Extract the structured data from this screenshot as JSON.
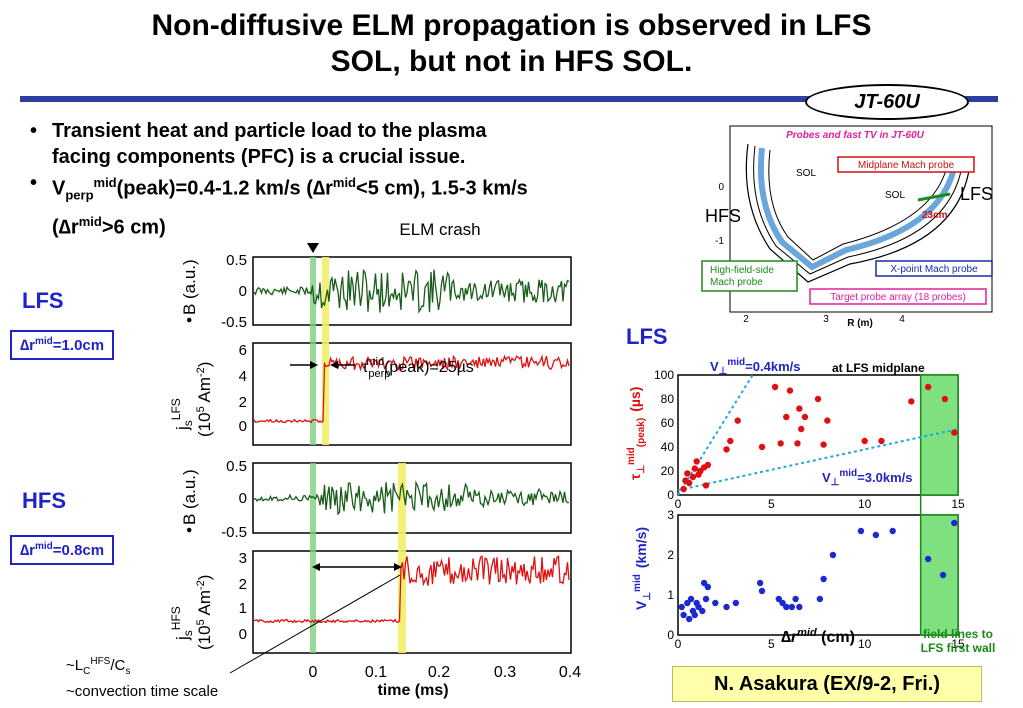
{
  "title_line1": "Non-diffusive ELM propagation is observed in LFS",
  "title_line2": "SOL, but not in HFS SOL.",
  "machine": "JT-60U",
  "bullets": {
    "b1_line1": "Transient heat and particle load to the plasma",
    "b1_line2": "facing components (PFC) is a crucial issue.",
    "b2_v": "V",
    "b2_sub": "perp",
    "b2_sup": "mid",
    "b2_text1": "(peak)=0.4-1.2 km/s (",
    "b2_dr": "∆r",
    "b2_text2": "<5 cm), 1.5-3 km/s",
    "b2_text3": ">6 cm)",
    "b2_paren": "("
  },
  "left_panels": {
    "elm_crash": "ELM crash",
    "lfs_label": "LFS",
    "hfs_label": "HFS",
    "lfs_box": "∆r",
    "lfs_box_val": "=1.0cm",
    "hfs_box": "∆r",
    "hfs_box_val": "=0.8cm",
    "box_sup": "mid",
    "bdot_label": "B (a.u.)",
    "js_lfs_label1": "j",
    "js_lfs_sub": "s",
    "js_lfs_sup": "LFS",
    "js_units": "(10",
    "js_units_exp": "5",
    "js_units_end": " Am",
    "js_units_exp2": "-2",
    "js_units_close": ")",
    "js_hfs_sup": "HFS",
    "tau_label": "τ",
    "tau_sub": "perp",
    "tau_sup": "mid",
    "tau_val": "(peak)=25µs",
    "xaxis": "time (ms)",
    "xticks": [
      "0",
      "0.1",
      "0.2",
      "0.3",
      "0.4"
    ],
    "p1_yticks": [
      "0.5",
      "0",
      "-0.5"
    ],
    "p2_yticks": [
      "6",
      "4",
      "2",
      "0"
    ],
    "p3_yticks": [
      "0.5",
      "0",
      "-0.5"
    ],
    "p4_yticks": [
      "3",
      "2",
      "1",
      "0"
    ],
    "lc_note1": "~L",
    "lc_sub": "C",
    "lc_sup": "HFS",
    "lc_note2": "/C",
    "lc_sub2": "s",
    "lc_note3": "~convection time scale"
  },
  "diagram": {
    "title": "Probes and fast TV in JT-60U",
    "sol1": "SOL",
    "sol2": "SOL",
    "lfs": "LFS",
    "hfs": "HFS",
    "cm23": "23cm",
    "midplane": "Midplane Mach probe",
    "hfs_mach1": "High-field-side",
    "hfs_mach2": "Mach probe",
    "xpoint": "X-point Mach probe",
    "target": "Target probe array (18 probes)",
    "yticks": [
      "0",
      "-1"
    ],
    "xticks": [
      "2",
      "3",
      "4"
    ],
    "xlabel": "R (m)"
  },
  "right_plot": {
    "lfs_label": "LFS",
    "at_lfs": "at LFS midplane",
    "v04": "=0.4km/s",
    "v30": "=3.0km/s",
    "v_sym": "V",
    "v_sub": "⊥",
    "v_sup": "mid",
    "top_ylabel": "(µs)",
    "top_ylabel_tau": "τ",
    "top_ylabel_sub": "⊥",
    "top_ylabel_sup": "mid",
    "top_ylabel_peak": "(peak)",
    "bottom_ylabel": "(km/s)",
    "top_yticks": [
      "100",
      "80",
      "60",
      "40",
      "20",
      "0"
    ],
    "bottom_yticks": [
      "3",
      "2",
      "1",
      "0"
    ],
    "top_xticks": [
      "0",
      "5",
      "10",
      "15"
    ],
    "bottom_xticks": [
      "0",
      "5",
      "10",
      "15"
    ],
    "xlabel_dr": "∆r",
    "xlabel_sup": "mid",
    "xlabel_unit": " (cm)",
    "green_note1": "field lines to",
    "green_note2": "LFS first wall"
  },
  "credit": "N. Asakura (EX/9-2, Fri.)",
  "chart_data": [
    {
      "type": "scatter",
      "title": "",
      "xlabel": "∆r mid (cm)",
      "ylabel": "τ⊥ mid (peak) (µs)",
      "xlim": [
        0,
        15
      ],
      "ylim": [
        0,
        100
      ],
      "series": [
        {
          "x": [
            0.3,
            0.4,
            0.5,
            0.6,
            0.8,
            0.9,
            1.0,
            1.1,
            1.2,
            1.4,
            1.5,
            1.6,
            2.6,
            2.8,
            3.2,
            4.5,
            5.2,
            5.5,
            5.8,
            6.0,
            6.4,
            6.5,
            6.6,
            6.8,
            7.5,
            7.8,
            8.0,
            10.0,
            10.9,
            12.5,
            13.4,
            14.3,
            14.8
          ],
          "y": [
            5,
            12,
            18,
            10,
            15,
            22,
            28,
            17,
            20,
            23,
            8,
            25,
            38,
            45,
            62,
            40,
            90,
            43,
            65,
            87,
            43,
            72,
            55,
            65,
            80,
            42,
            62,
            45,
            45,
            78,
            90,
            80,
            52
          ]
        }
      ],
      "lines": [
        {
          "label": "V⊥ mid =0.4km/s",
          "x": [
            0,
            4
          ],
          "y": [
            0,
            100
          ]
        },
        {
          "label": "V⊥ mid =3.0km/s",
          "x": [
            0,
            15
          ],
          "y": [
            4,
            55
          ]
        }
      ],
      "shaded_region_x": [
        13,
        15
      ]
    },
    {
      "type": "scatter",
      "title": "",
      "xlabel": "∆r mid (cm)",
      "ylabel": "V⊥ mid (km/s)",
      "xlim": [
        0,
        15
      ],
      "ylim": [
        0,
        3
      ],
      "series": [
        {
          "x": [
            0.2,
            0.3,
            0.5,
            0.6,
            0.7,
            0.8,
            0.9,
            1.0,
            1.1,
            1.3,
            1.4,
            1.5,
            1.6,
            2.0,
            2.6,
            3.1,
            4.4,
            4.5,
            5.4,
            5.6,
            5.8,
            6.1,
            6.3,
            6.5,
            7.6,
            7.8,
            8.3,
            9.8,
            10.6,
            11.5,
            13.4,
            14.2,
            14.8
          ],
          "y": [
            0.7,
            0.5,
            0.8,
            0.4,
            0.9,
            0.6,
            0.5,
            0.8,
            0.7,
            0.6,
            1.3,
            0.9,
            1.2,
            0.8,
            0.7,
            0.8,
            1.3,
            1.1,
            0.9,
            0.8,
            0.7,
            0.7,
            0.9,
            0.7,
            0.9,
            1.4,
            2.0,
            2.6,
            2.5,
            2.6,
            1.9,
            1.5,
            2.8
          ]
        }
      ],
      "shaded_region_x": [
        13,
        15
      ]
    }
  ]
}
